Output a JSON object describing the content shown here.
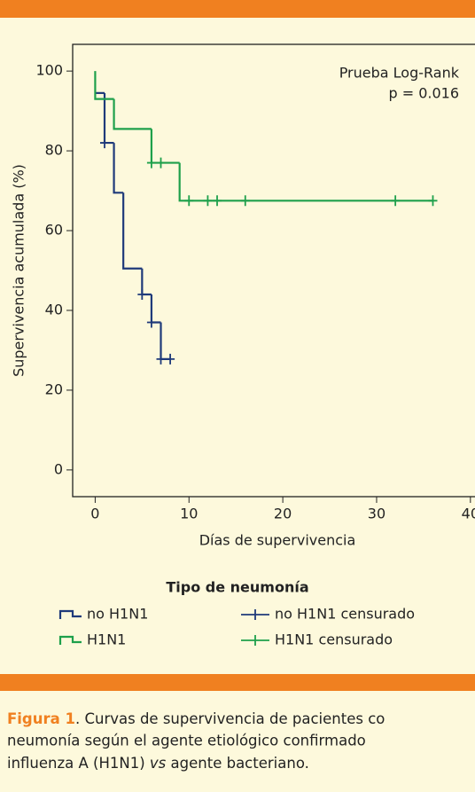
{
  "chart_data": {
    "type": "step",
    "xlabel": "Días de supervivencia",
    "ylabel": "Supervivencia acumulada (%)",
    "xlim": [
      -2.4,
      42
    ],
    "ylim": [
      -6.7,
      106.7
    ],
    "xticks": [
      0,
      10,
      20,
      30,
      40
    ],
    "yticks": [
      0,
      20,
      40,
      60,
      80,
      100
    ],
    "annotations": [
      "Prueba Log-Rank",
      "p = 0.016"
    ],
    "legend_title": "Tipo de neumonía",
    "series": [
      {
        "name": "no H1N1",
        "style": "step",
        "color": "#1f3a7a",
        "x": [
          0,
          1,
          2,
          3,
          5,
          6,
          7,
          8
        ],
        "values": [
          94.5,
          82,
          69.5,
          50.5,
          44,
          37,
          27.8,
          27.8
        ]
      },
      {
        "name": "H1N1",
        "style": "step",
        "color": "#1ea04b",
        "x": [
          0,
          0,
          2,
          6,
          9,
          36
        ],
        "values": [
          100,
          93,
          85.5,
          77,
          67.5,
          67.5
        ]
      },
      {
        "name": "no H1N1 censurado",
        "style": "censored",
        "color": "#1f3a7a",
        "x": [
          1,
          5,
          6,
          7,
          8
        ],
        "values": [
          82,
          44,
          37,
          27.8,
          27.8
        ]
      },
      {
        "name": "H1N1 censurado",
        "style": "censored",
        "color": "#1ea04b",
        "x": [
          6,
          7,
          10,
          12,
          13,
          16,
          32,
          36
        ],
        "values": [
          77,
          77,
          67.5,
          67.5,
          67.5,
          67.5,
          67.5,
          67.5
        ]
      }
    ]
  },
  "caption": {
    "label": "Figura 1",
    "lines": [
      ". Curvas de supervivencia de pacientes co",
      "neumonía según el agente etiológico confirmado",
      "influenza A (H1N1) ",
      "vs",
      " agente bacteriano."
    ]
  }
}
